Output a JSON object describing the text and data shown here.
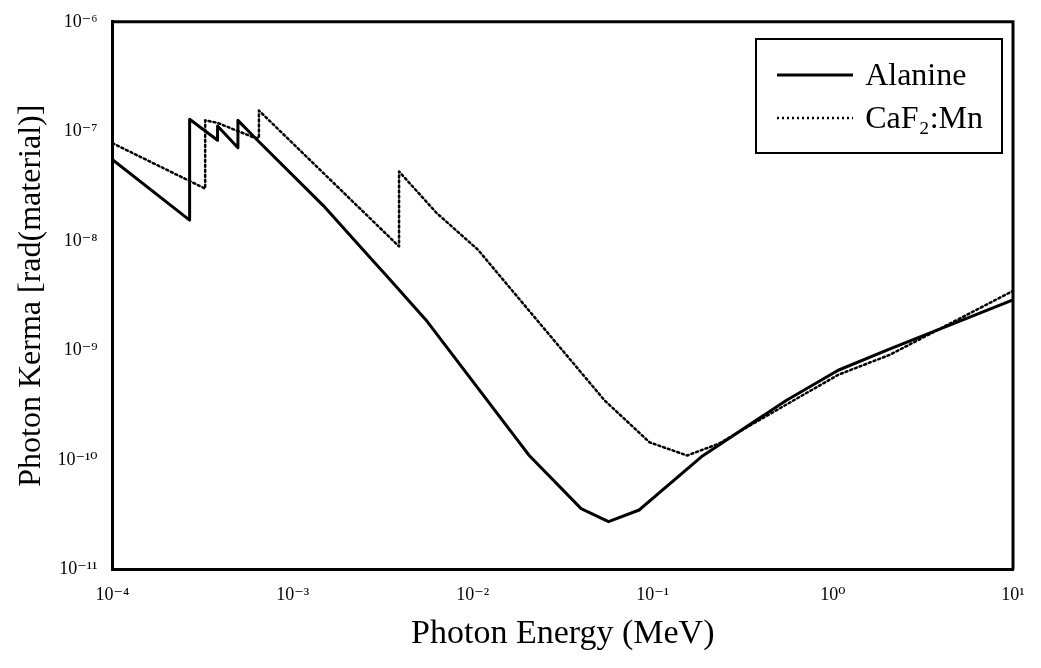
{
  "chart_data": {
    "type": "line",
    "xlabel": "Photon Energy (MeV)",
    "ylabel": "Photon Kerma [rad(material)]",
    "log": "xy",
    "grid": false,
    "legend": "top right",
    "marker": "none",
    "xlim": [
      0.0001,
      10
    ],
    "ylim": [
      1e-11,
      1e-06
    ],
    "xticks": [
      {
        "value": 0.0001,
        "label": "10⁻⁴"
      },
      {
        "value": 0.001,
        "label": "10⁻³"
      },
      {
        "value": 0.01,
        "label": "10⁻²"
      },
      {
        "value": 0.1,
        "label": "10⁻¹"
      },
      {
        "value": 1,
        "label": "10⁰"
      },
      {
        "value": 10,
        "label": "10¹"
      }
    ],
    "yticks": [
      {
        "value": 1e-11,
        "label": "10⁻¹¹"
      },
      {
        "value": 1e-10,
        "label": "10⁻¹⁰"
      },
      {
        "value": 1e-09,
        "label": "10⁻⁹"
      },
      {
        "value": 1e-08,
        "label": "10⁻⁸"
      },
      {
        "value": 1e-07,
        "label": "10⁻⁷"
      },
      {
        "value": 1e-06,
        "label": "10⁻⁶"
      }
    ],
    "series": [
      {
        "name": "Alanine",
        "color": "#000000",
        "line_style": "solid",
        "x": [
          0.0001,
          0.000268,
          0.000268,
          0.000383,
          0.000383,
          0.000497,
          0.000497,
          0.00062,
          0.00148,
          0.0034,
          0.0055,
          0.0206,
          0.04,
          0.0568,
          0.084,
          0.186,
          0.55,
          1.07,
          2.06,
          10
        ],
        "values": [
          5.5e-08,
          1.55e-08,
          1.29e-07,
          8.3e-08,
          1.12e-07,
          7.1e-08,
          1.26e-07,
          8.7e-08,
          2.1e-08,
          4.6e-09,
          1.9e-09,
          1.1e-10,
          3.6e-11,
          2.74e-11,
          3.5e-11,
          1.07e-10,
          3.5e-10,
          6.6e-10,
          1.03e-09,
          2.9e-09
        ]
      },
      {
        "name": "CaF₂:Mn",
        "color": "#000000",
        "line_style": "dotted",
        "x": [
          0.0001,
          0.000327,
          0.000327,
          0.00038,
          0.00062,
          0.00065,
          0.00065,
          0.0039,
          0.0039,
          0.0063,
          0.0107,
          0.0206,
          0.054,
          0.096,
          0.155,
          0.23,
          0.55,
          1.07,
          2.06,
          10
        ],
        "values": [
          7.8e-08,
          3e-08,
          1.26e-07,
          1.2e-07,
          8.7e-08,
          8.7e-08,
          1.55e-07,
          8.9e-09,
          4.3e-08,
          1.8e-08,
          8.3e-09,
          2.3e-09,
          3.5e-10,
          1.45e-10,
          1.1e-10,
          1.4e-10,
          3.2e-10,
          6e-10,
          9.1e-10,
          3.5e-09
        ]
      }
    ]
  }
}
